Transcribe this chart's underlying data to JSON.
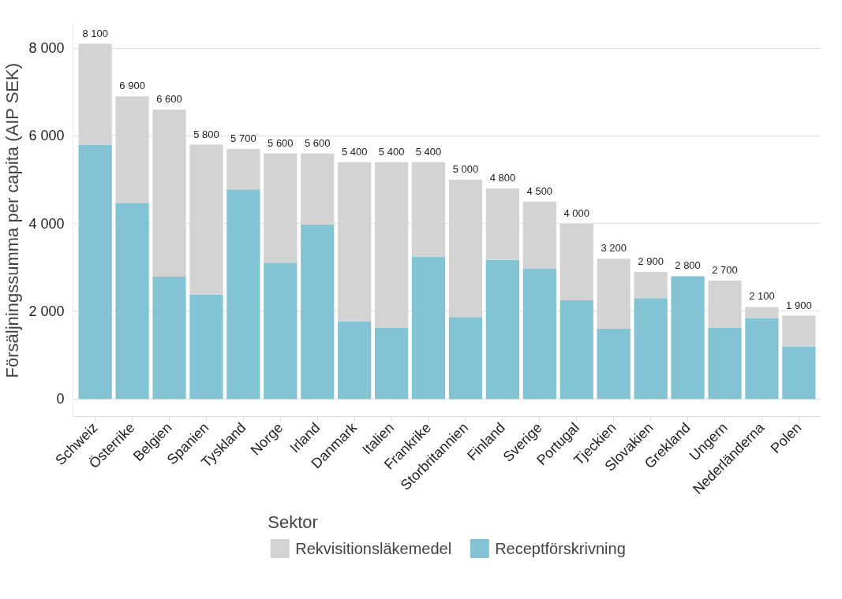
{
  "chart_data": {
    "type": "bar",
    "stacked": true,
    "ylabel": "Försäljningssumma per capita (AIP SEK)",
    "legend_title": "Sektor",
    "legend": "bottom",
    "grid": "y",
    "categories": [
      "Schweiz",
      "Österrike",
      "Belgien",
      "Spanien",
      "Tyskland",
      "Norge",
      "Irland",
      "Danmark",
      "Italien",
      "Frankrike",
      "Storbritannien",
      "Finland",
      "Sverige",
      "Portugal",
      "Tjeckien",
      "Slovakien",
      "Grekland",
      "Ungern",
      "Nederländerna",
      "Polen"
    ],
    "series": [
      {
        "name": "Receptförskrivning",
        "color": "#82c4d3",
        "values": [
          5800,
          4470,
          2790,
          2380,
          4780,
          3110,
          3980,
          1770,
          1630,
          3250,
          1870,
          3170,
          2980,
          2250,
          1610,
          2300,
          2800,
          1630,
          1840,
          1200
        ]
      },
      {
        "name": "Rekvisitionsläkemedel",
        "color": "#d3d3d3",
        "values": [
          2300,
          2430,
          3810,
          3420,
          920,
          2490,
          1620,
          3630,
          3770,
          2150,
          3130,
          1630,
          1520,
          1750,
          1590,
          600,
          0,
          1070,
          260,
          700
        ]
      }
    ],
    "totals": [
      "8 100",
      "6 900",
      "6 600",
      "5 800",
      "5 700",
      "5 600",
      "5 600",
      "5 400",
      "5 400",
      "5 400",
      "5 000",
      "4 800",
      "4 500",
      "4 000",
      "3 200",
      "2 900",
      "2 800",
      "2 700",
      "2 100",
      "1 900"
    ],
    "ylim": [
      -400,
      8550
    ],
    "yticks": [
      {
        "value": 0,
        "label": "0"
      },
      {
        "value": 2000,
        "label": "2 000"
      },
      {
        "value": 4000,
        "label": "4 000"
      },
      {
        "value": 6000,
        "label": "6 000"
      },
      {
        "value": 8000,
        "label": "8 000"
      }
    ]
  }
}
